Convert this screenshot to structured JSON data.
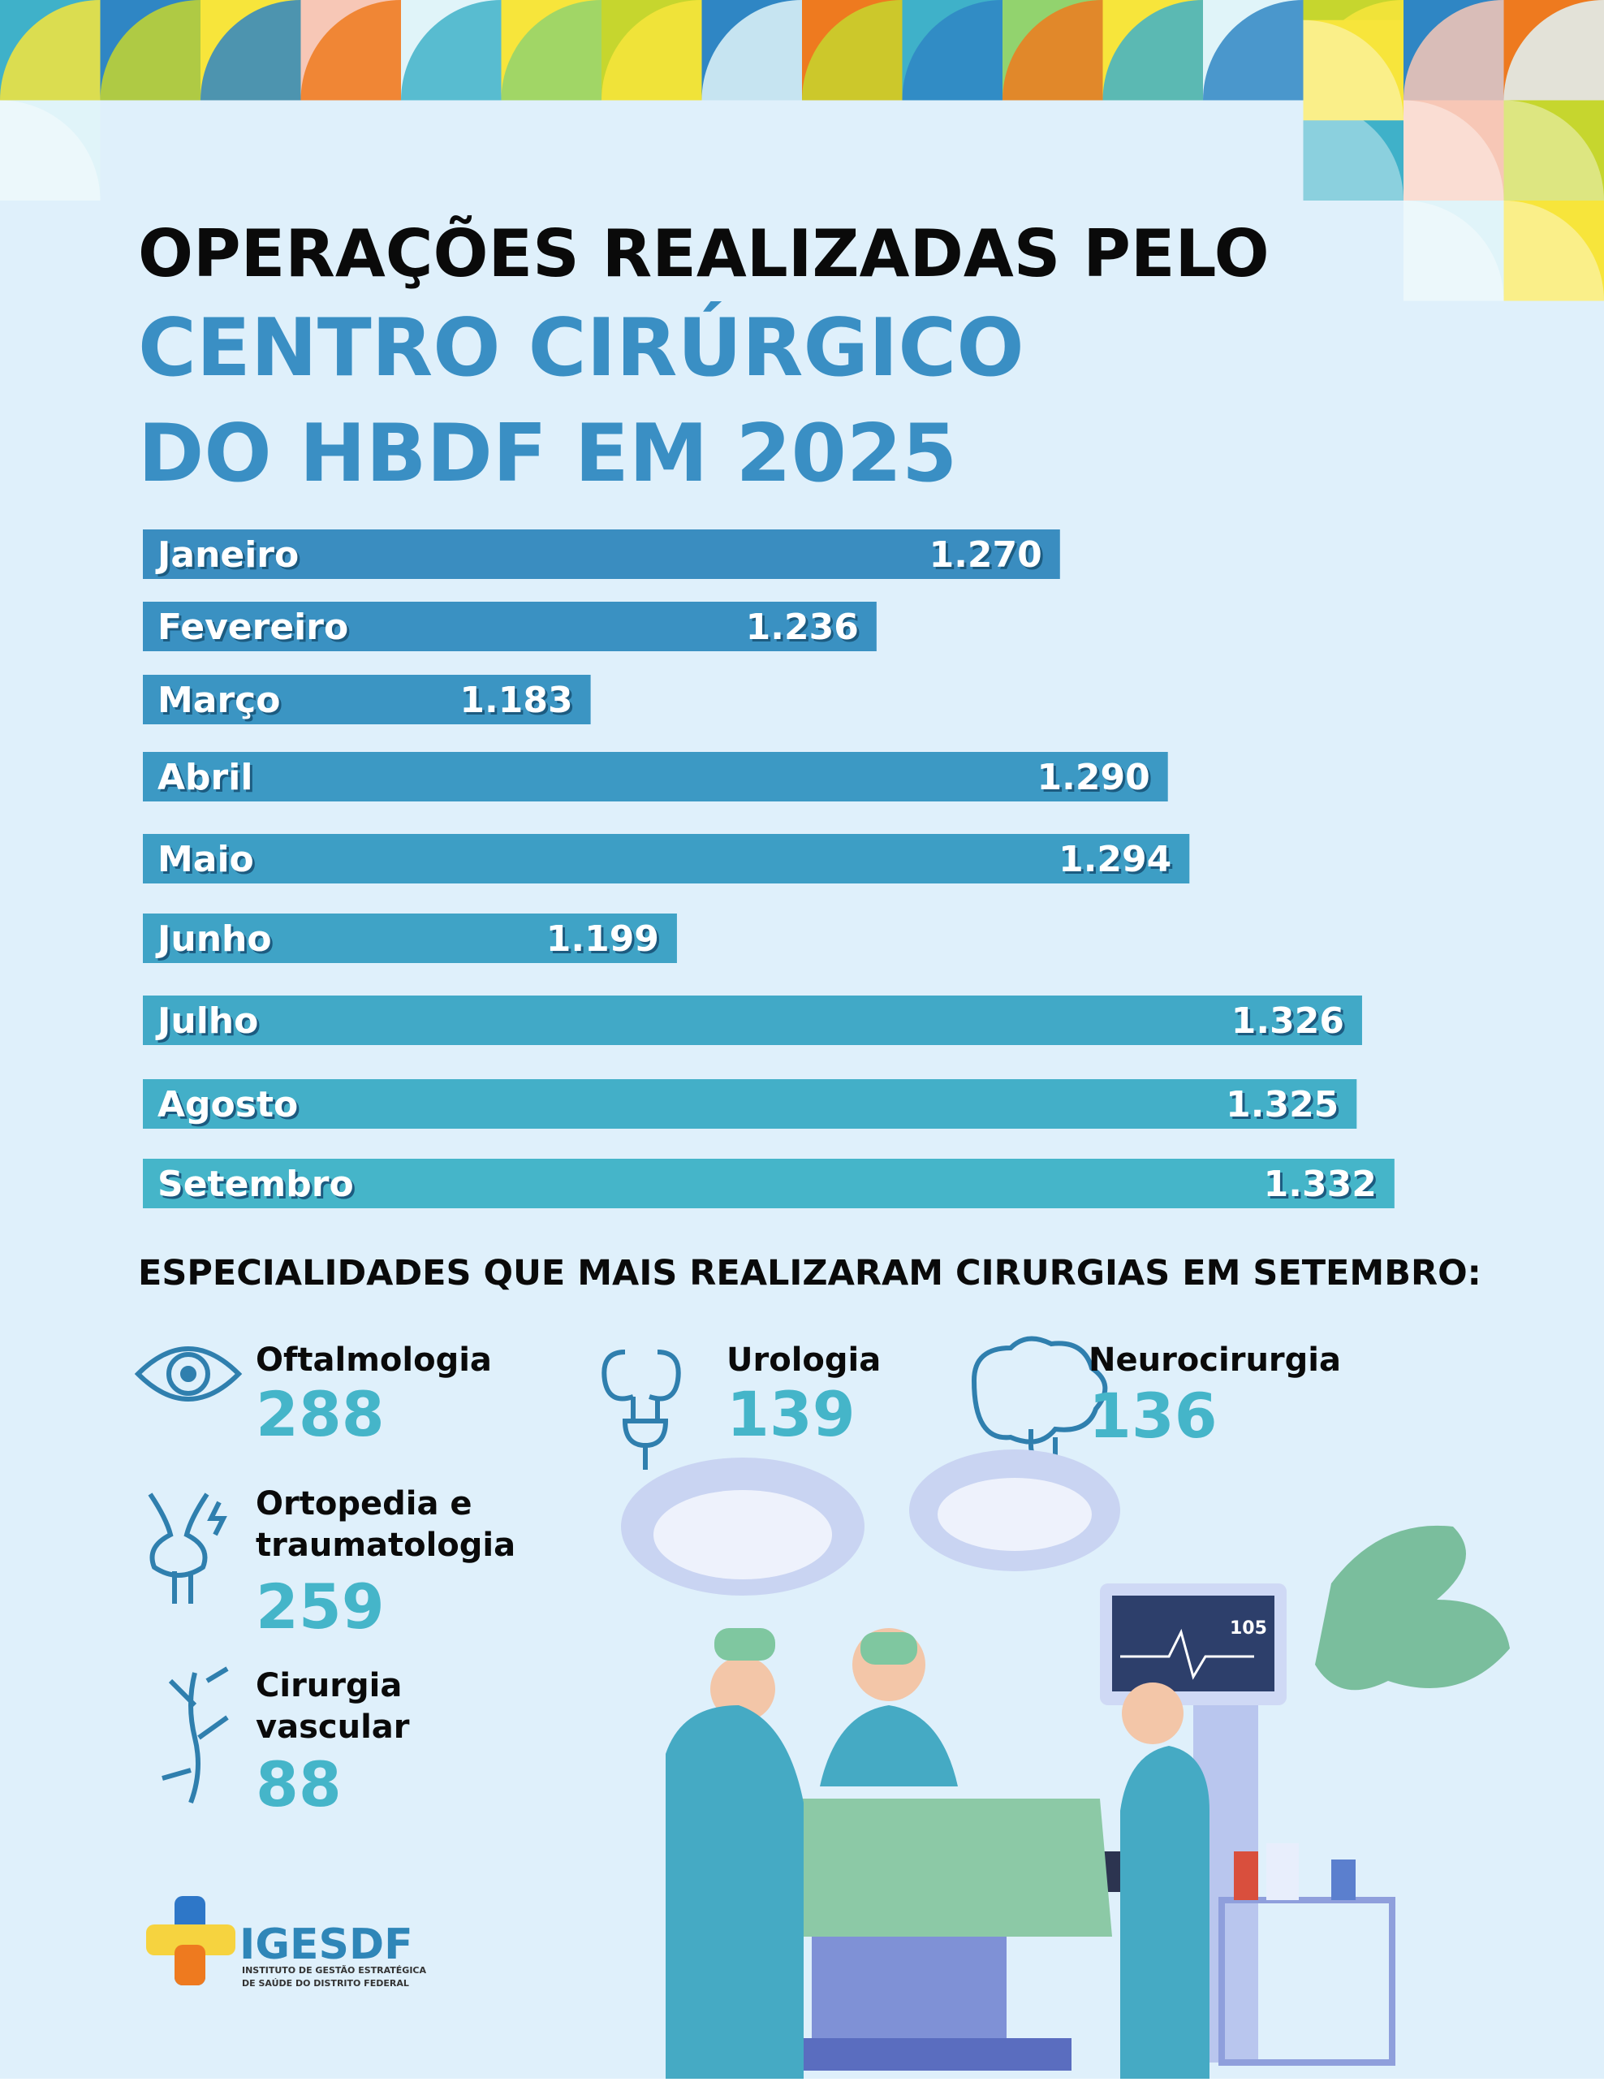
{
  "title_lines": [
    "OPERAÇÕES REALIZADAS PELO",
    "CENTRO CIRÚRGICO",
    "DO HBDF EM 2025"
  ],
  "chart_data": {
    "type": "bar",
    "orientation": "horizontal",
    "categories": [
      "Janeiro",
      "Fevereiro",
      "Março",
      "Abril",
      "Maio",
      "Junho",
      "Julho",
      "Agosto",
      "Setembro"
    ],
    "values": [
      1270,
      1236,
      1183,
      1290,
      1294,
      1199,
      1326,
      1325,
      1332
    ],
    "value_labels": [
      "1.270",
      "1.236",
      "1.183",
      "1.290",
      "1.294",
      "1.199",
      "1.326",
      "1.325",
      "1.332"
    ],
    "colors": [
      "#3a8dc0",
      "#3a91c2",
      "#3b95c3",
      "#3c99c4",
      "#3d9ec5",
      "#3fa3c6",
      "#41a9c7",
      "#43afc8",
      "#45b5c9"
    ],
    "xlim": [
      1100,
      1340
    ]
  },
  "specialties": {
    "heading": "ESPECIALIDADES QUE MAIS REALIZARAM CIRURGIAS EM SETEMBRO:",
    "items": [
      {
        "name": [
          "Oftalmologia"
        ],
        "value": 288
      },
      {
        "name": [
          "Urologia"
        ],
        "value": 139
      },
      {
        "name": [
          "Neurocirurgia"
        ],
        "value": 136
      },
      {
        "name": [
          "Ortopedia e",
          "traumatologia"
        ],
        "value": 259
      },
      {
        "name": [
          "Cirurgia",
          "vascular"
        ],
        "value": 88
      }
    ]
  },
  "logo": {
    "name": "IGESDF",
    "subtitle": [
      "INSTITUTO DE GESTÃO ESTRATÉGICA",
      "DE SAÚDE DO DISTRITO FEDERAL"
    ]
  },
  "illustration": {
    "monitor_value": "105"
  }
}
